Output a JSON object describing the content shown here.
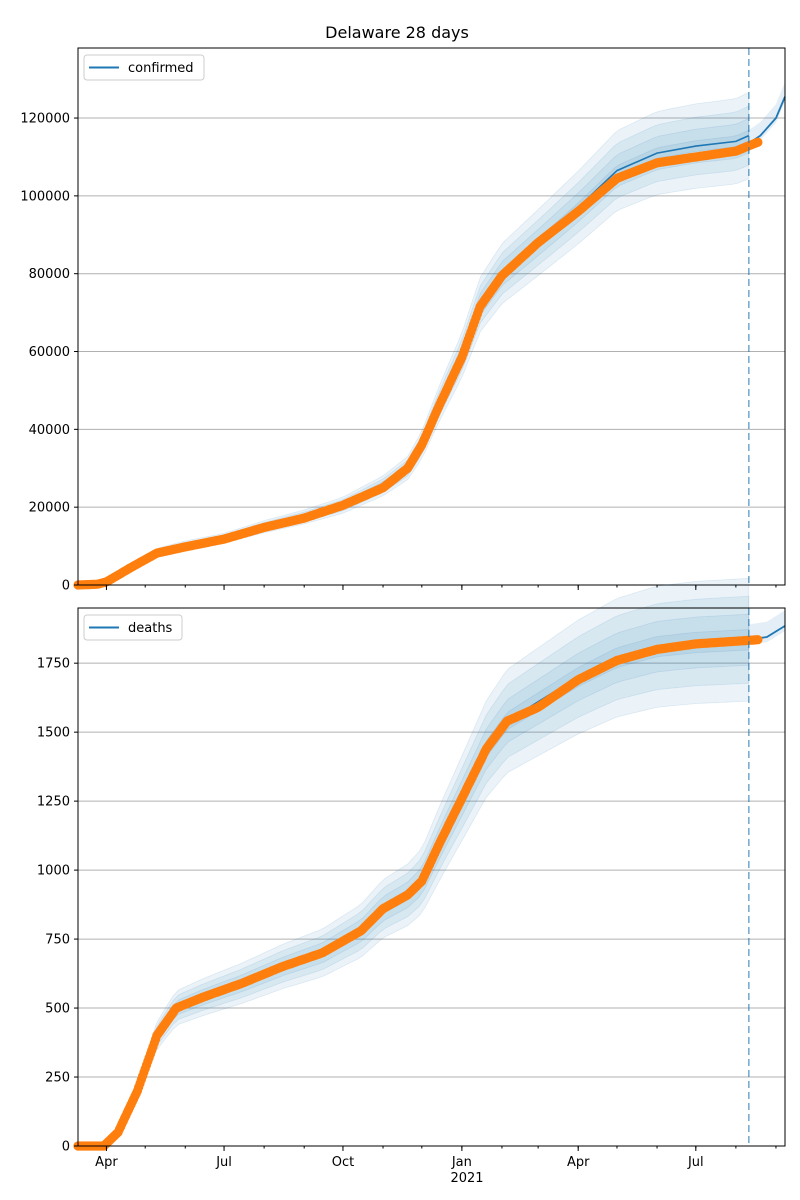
{
  "colors": {
    "model_line": "#1f77b4",
    "band": "#1f77b4",
    "observed": "#ff7f0e",
    "grid": "#b0b0b0",
    "today_line": "#1f77b4"
  },
  "chart_data": [
    {
      "type": "line",
      "title": "Delaware 28 days",
      "legend": [
        "confirmed"
      ],
      "legend_position": "top-left",
      "grid": "y",
      "x_ticks": [
        "Apr",
        "Jul",
        "Oct",
        "Jan",
        "Apr",
        "Jul"
      ],
      "x_tick_dates": [
        "2020-04-01",
        "2020-07-01",
        "2020-10-01",
        "2021-01-01",
        "2021-04-01",
        "2021-07-01"
      ],
      "x_year_label": "2021",
      "xlim": [
        "2020-03-10",
        "2021-09-08"
      ],
      "forecast_start": "2021-08-11",
      "y_ticks": [
        "0",
        "20000",
        "40000",
        "60000",
        "80000",
        "100000",
        "120000"
      ],
      "ylim": [
        0,
        138000
      ],
      "series": [
        {
          "name": "confirmed",
          "role": "model",
          "points": [
            [
              "2020-03-10",
              0
            ],
            [
              "2020-04-01",
              700
            ],
            [
              "2020-04-20",
              4500
            ],
            [
              "2020-05-10",
              8500
            ],
            [
              "2020-06-01",
              10200
            ],
            [
              "2020-07-01",
              12000
            ],
            [
              "2020-08-01",
              15000
            ],
            [
              "2020-09-01",
              17500
            ],
            [
              "2020-10-01",
              20500
            ],
            [
              "2020-11-01",
              25500
            ],
            [
              "2020-11-20",
              30000
            ],
            [
              "2020-12-01",
              36000
            ],
            [
              "2020-12-15",
              47000
            ],
            [
              "2021-01-01",
              59000
            ],
            [
              "2021-01-15",
              72000
            ],
            [
              "2021-02-01",
              80000
            ],
            [
              "2021-03-01",
              88000
            ],
            [
              "2021-04-01",
              97000
            ],
            [
              "2021-05-01",
              106500
            ],
            [
              "2021-06-01",
              111000
            ],
            [
              "2021-07-01",
              112800
            ],
            [
              "2021-08-01",
              114000
            ],
            [
              "2021-08-11",
              115500
            ]
          ]
        },
        {
          "name": "",
          "role": "forecast",
          "points": [
            [
              "2021-08-11",
              113500
            ],
            [
              "2021-08-20",
              115500
            ],
            [
              "2021-09-01",
              120000
            ],
            [
              "2021-09-08",
              125500
            ]
          ]
        },
        {
          "name": "",
          "role": "observed",
          "points": [
            [
              "2020-03-10",
              0
            ],
            [
              "2020-03-25",
              200
            ],
            [
              "2020-04-01",
              800
            ],
            [
              "2020-04-20",
              4500
            ],
            [
              "2020-05-10",
              8200
            ],
            [
              "2020-06-01",
              9800
            ],
            [
              "2020-07-01",
              11800
            ],
            [
              "2020-08-01",
              14800
            ],
            [
              "2020-09-01",
              17200
            ],
            [
              "2020-10-01",
              20500
            ],
            [
              "2020-11-01",
              25000
            ],
            [
              "2020-11-20",
              30000
            ],
            [
              "2020-12-01",
              36000
            ],
            [
              "2020-12-15",
              46500
            ],
            [
              "2021-01-01",
              58500
            ],
            [
              "2021-01-15",
              71500
            ],
            [
              "2021-02-01",
              79500
            ],
            [
              "2021-03-01",
              88000
            ],
            [
              "2021-04-01",
              96000
            ],
            [
              "2021-05-01",
              104500
            ],
            [
              "2021-06-01",
              108500
            ],
            [
              "2021-07-01",
              110000
            ],
            [
              "2021-08-01",
              111500
            ],
            [
              "2021-08-18",
              113800
            ]
          ]
        }
      ]
    },
    {
      "type": "line",
      "title": "",
      "legend": [
        "deaths"
      ],
      "legend_position": "top-left",
      "grid": "y",
      "x_ticks": [
        "Apr",
        "Jul",
        "Oct",
        "Jan",
        "Apr",
        "Jul"
      ],
      "x_tick_dates": [
        "2020-04-01",
        "2020-07-01",
        "2020-10-01",
        "2021-01-01",
        "2021-04-01",
        "2021-07-01"
      ],
      "x_year_label": "2021",
      "xlim": [
        "2020-03-10",
        "2021-09-08"
      ],
      "forecast_start": "2021-08-11",
      "y_ticks": [
        "0",
        "250",
        "500",
        "750",
        "1000",
        "1250",
        "1500",
        "1750"
      ],
      "ylim": [
        0,
        1950
      ],
      "series": [
        {
          "name": "deaths",
          "role": "model",
          "points": [
            [
              "2020-03-10",
              0
            ],
            [
              "2020-03-30",
              0
            ],
            [
              "2020-04-10",
              50
            ],
            [
              "2020-04-25",
              200
            ],
            [
              "2020-05-10",
              400
            ],
            [
              "2020-05-25",
              500
            ],
            [
              "2020-06-15",
              540
            ],
            [
              "2020-07-15",
              590
            ],
            [
              "2020-08-15",
              650
            ],
            [
              "2020-09-15",
              700
            ],
            [
              "2020-10-15",
              780
            ],
            [
              "2020-11-01",
              860
            ],
            [
              "2020-11-20",
              910
            ],
            [
              "2020-12-01",
              960
            ],
            [
              "2020-12-15",
              1100
            ],
            [
              "2021-01-01",
              1260
            ],
            [
              "2021-01-20",
              1440
            ],
            [
              "2021-02-05",
              1540
            ],
            [
              "2021-03-01",
              1610
            ],
            [
              "2021-04-01",
              1700
            ],
            [
              "2021-05-01",
              1770
            ],
            [
              "2021-06-01",
              1810
            ],
            [
              "2021-07-01",
              1825
            ],
            [
              "2021-08-11",
              1835
            ]
          ]
        },
        {
          "name": "",
          "role": "forecast",
          "points": [
            [
              "2021-08-11",
              1835
            ],
            [
              "2021-08-25",
              1845
            ],
            [
              "2021-09-08",
              1885
            ]
          ]
        },
        {
          "name": "",
          "role": "observed",
          "points": [
            [
              "2020-03-10",
              0
            ],
            [
              "2020-03-30",
              0
            ],
            [
              "2020-04-10",
              50
            ],
            [
              "2020-04-25",
              200
            ],
            [
              "2020-05-10",
              400
            ],
            [
              "2020-05-25",
              500
            ],
            [
              "2020-06-15",
              540
            ],
            [
              "2020-07-15",
              590
            ],
            [
              "2020-08-15",
              650
            ],
            [
              "2020-09-15",
              700
            ],
            [
              "2020-10-15",
              780
            ],
            [
              "2020-11-01",
              860
            ],
            [
              "2020-11-20",
              910
            ],
            [
              "2020-12-01",
              960
            ],
            [
              "2020-12-15",
              1100
            ],
            [
              "2021-01-01",
              1260
            ],
            [
              "2021-01-20",
              1440
            ],
            [
              "2021-02-05",
              1540
            ],
            [
              "2021-03-01",
              1590
            ],
            [
              "2021-04-01",
              1690
            ],
            [
              "2021-05-01",
              1760
            ],
            [
              "2021-06-01",
              1800
            ],
            [
              "2021-07-01",
              1820
            ],
            [
              "2021-08-18",
              1835
            ]
          ]
        }
      ]
    }
  ]
}
